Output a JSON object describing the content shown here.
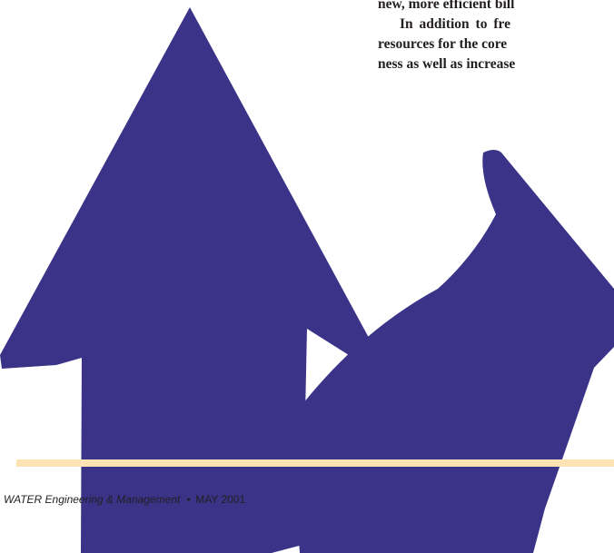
{
  "article": {
    "lines": [
      "new, more efficient bill",
      "In addition to fre",
      "resources for the core",
      "ness as well as increase"
    ]
  },
  "footer": {
    "magazine": "WATER Engineering & Management",
    "bullet": "•",
    "issue": "MAY 2001"
  },
  "colors": {
    "arrow": "#3a3388",
    "rule": "#fde2b4",
    "text": "#231f20"
  }
}
